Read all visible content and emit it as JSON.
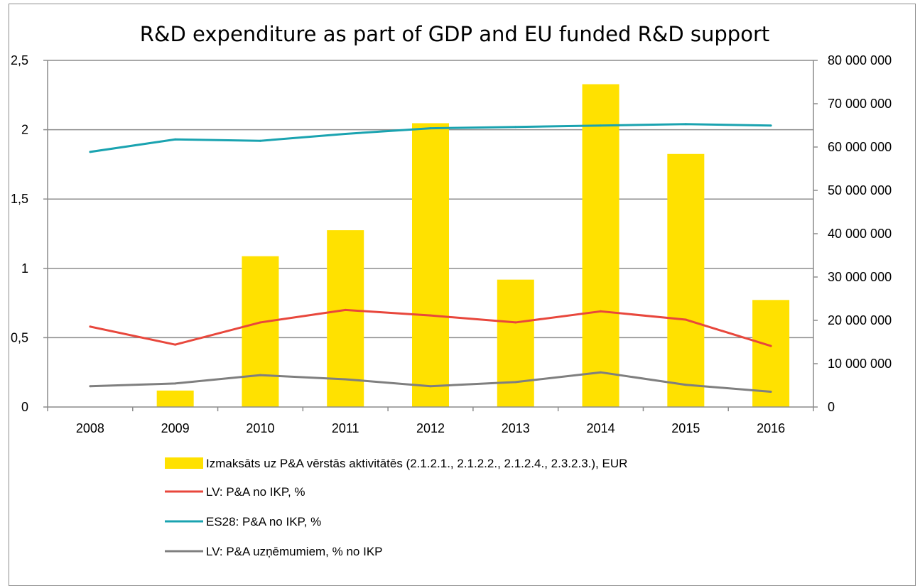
{
  "chart_data": {
    "type": "bar",
    "title": "R&D expenditure as part of GDP and EU funded R&D support",
    "categories": [
      "2008",
      "2009",
      "2010",
      "2011",
      "2012",
      "2013",
      "2014",
      "2015",
      "2016"
    ],
    "left_axis": {
      "ylim": [
        0,
        2.5
      ],
      "ticks": [
        0,
        0.5,
        1,
        1.5,
        2,
        2.5
      ],
      "tick_labels": [
        "0",
        "0,5",
        "1",
        "1,5",
        "2",
        "2,5"
      ]
    },
    "right_axis": {
      "ylim": [
        0,
        80000000
      ],
      "ticks": [
        0,
        10000000,
        20000000,
        30000000,
        40000000,
        50000000,
        60000000,
        70000000,
        80000000
      ],
      "tick_labels": [
        "0",
        "10 000 000",
        "20 000 000",
        "30 000 000",
        "40 000 000",
        "50 000 000",
        "60 000 000",
        "70 000 000",
        "80 000 000"
      ]
    },
    "grid": "horizontal",
    "legend_position": "bottom",
    "series": [
      {
        "name": "Izmaksāts uz P&A vērstās aktivitātēs (2.1.2.1., 2.1.2.2., 2.1.2.4., 2.3.2.3.), EUR",
        "type": "bar",
        "axis": "right",
        "color": "#ffe100",
        "values": [
          0,
          3800000,
          34800000,
          40800000,
          65500000,
          29400000,
          74500000,
          58400000,
          24700000
        ]
      },
      {
        "name": "LV: P&A no IKP, %",
        "type": "line",
        "axis": "left",
        "color": "#e8473c",
        "values": [
          0.58,
          0.45,
          0.61,
          0.7,
          0.66,
          0.61,
          0.69,
          0.63,
          0.44
        ]
      },
      {
        "name": "ES28: P&A no IKP, %",
        "type": "line",
        "axis": "left",
        "color": "#1aa3b0",
        "values": [
          1.84,
          1.93,
          1.92,
          1.97,
          2.01,
          2.02,
          2.03,
          2.04,
          2.03
        ]
      },
      {
        "name": "LV: P&A uzņēmumiem, % no IKP",
        "type": "line",
        "axis": "left",
        "color": "#7f7f7f",
        "values": [
          0.15,
          0.17,
          0.23,
          0.2,
          0.15,
          0.18,
          0.25,
          0.16,
          0.11
        ]
      }
    ]
  }
}
